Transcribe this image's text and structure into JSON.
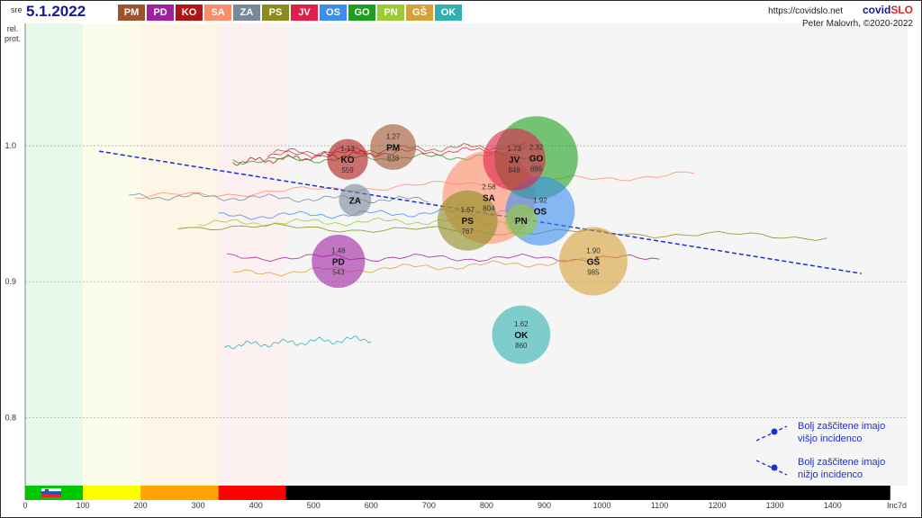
{
  "header": {
    "day": "sre",
    "date": "5.1.2022",
    "site": "https://covidslo.net",
    "brand_a": "covid",
    "brand_b": "SLO",
    "author": "Peter Malovrh, ©2020-2022"
  },
  "legend": [
    {
      "code": "PM",
      "color": "#a0522d"
    },
    {
      "code": "PD",
      "color": "#a020a0"
    },
    {
      "code": "KO",
      "color": "#b01515"
    },
    {
      "code": "SA",
      "color": "#ff8c69"
    },
    {
      "code": "ZA",
      "color": "#778899"
    },
    {
      "code": "PS",
      "color": "#8c8c1a"
    },
    {
      "code": "JV",
      "color": "#e21f4b"
    },
    {
      "code": "OS",
      "color": "#3a8ef0"
    },
    {
      "code": "GO",
      "color": "#1ea01e"
    },
    {
      "code": "PN",
      "color": "#9acd32"
    },
    {
      "code": "GŠ",
      "color": "#d8a038"
    },
    {
      "code": "OK",
      "color": "#30b0b0"
    }
  ],
  "colors": {
    "bands": [
      "#e8f8ea",
      "#fcfcea",
      "#fdf5e6",
      "#fdf0f0"
    ],
    "scale": [
      "#00c800",
      "#ffff00",
      "#ffa500",
      "#ff0000",
      "#000000"
    ],
    "plot_bg": "#f5f5f5",
    "trend": "#1a2ed6"
  },
  "chart_data": {
    "type": "scatter",
    "title": "5.1.2022",
    "xlabel": "Inc7d",
    "ylabel": "rel. prot.",
    "xlim": [
      0,
      1530
    ],
    "ylim": [
      0.75,
      1.09
    ],
    "x_ticks": [
      0,
      100,
      200,
      300,
      400,
      500,
      600,
      700,
      800,
      900,
      1000,
      1100,
      1200,
      1300,
      1400
    ],
    "y_ticks": [
      0.8,
      0.9,
      1.0
    ],
    "y_tick_labels": [
      "0.8",
      "0.9",
      "1.0"
    ],
    "band_edges": [
      0,
      100,
      200,
      335,
      452
    ],
    "scale_edges": [
      0,
      100,
      200,
      335,
      452,
      1500
    ],
    "trend_line": {
      "x": [
        128,
        1450
      ],
      "y": [
        0.996,
        0.906
      ]
    },
    "legend_notes": [
      {
        "line1": "Bolj  zaščitene imajo",
        "line2": "višjo incidenco"
      },
      {
        "line1": "Bolj  zaščitene imajo",
        "line2": "nižjo incidenco"
      }
    ],
    "points": [
      {
        "code": "PM",
        "x": 638,
        "y": 0.999,
        "r": 1.27,
        "label_x": "638",
        "label_r": "1.27"
      },
      {
        "code": "PD",
        "x": 543,
        "y": 0.915,
        "r": 1.48,
        "label_x": "543",
        "label_r": "1.48"
      },
      {
        "code": "KO",
        "x": 559,
        "y": 0.99,
        "r": 1.13,
        "label_x": "559",
        "label_r": "1.13"
      },
      {
        "code": "SA",
        "x": 804,
        "y": 0.962,
        "r": 2.58,
        "label_x": "804",
        "label_r": "2.58"
      },
      {
        "code": "ZA",
        "x": 572,
        "y": 0.96,
        "r": 0.9,
        "label_x": "",
        "label_r": ""
      },
      {
        "code": "PS",
        "x": 767,
        "y": 0.945,
        "r": 1.67,
        "label_x": "767",
        "label_r": "1.67"
      },
      {
        "code": "JV",
        "x": 848,
        "y": 0.99,
        "r": 1.73,
        "label_x": "848",
        "label_r": "1.73"
      },
      {
        "code": "OS",
        "x": 893,
        "y": 0.952,
        "r": 1.92,
        "label_x": "",
        "label_r": "1.92"
      },
      {
        "code": "GO",
        "x": 886,
        "y": 0.991,
        "r": 2.32,
        "label_x": "886",
        "label_r": "2.32"
      },
      {
        "code": "PN",
        "x": 860,
        "y": 0.945,
        "r": 0.9,
        "label_x": "",
        "label_r": ""
      },
      {
        "code": "GŠ",
        "x": 985,
        "y": 0.915,
        "r": 1.9,
        "label_x": "985",
        "label_r": "1.90"
      },
      {
        "code": "OK",
        "x": 860,
        "y": 0.861,
        "r": 1.62,
        "label_x": "860",
        "label_r": "1.62"
      }
    ],
    "trails": [
      {
        "code": "PM",
        "x1": 430,
        "x2": 870,
        "y1": 0.995,
        "y2": 1.0
      },
      {
        "code": "PD",
        "x1": 350,
        "x2": 1100,
        "y1": 0.918,
        "y2": 0.917
      },
      {
        "code": "KO",
        "x1": 360,
        "x2": 620,
        "y1": 0.988,
        "y2": 0.995
      },
      {
        "code": "SA",
        "x1": 190,
        "x2": 1160,
        "y1": 0.962,
        "y2": 0.979
      },
      {
        "code": "ZA",
        "x1": 180,
        "x2": 700,
        "y1": 0.963,
        "y2": 0.96
      },
      {
        "code": "PS",
        "x1": 265,
        "x2": 1390,
        "y1": 0.941,
        "y2": 0.933
      },
      {
        "code": "JV",
        "x1": 420,
        "x2": 870,
        "y1": 0.993,
        "y2": 0.997
      },
      {
        "code": "OS",
        "x1": 335,
        "x2": 900,
        "y1": 0.948,
        "y2": 0.952
      },
      {
        "code": "GO",
        "x1": 360,
        "x2": 890,
        "y1": 0.989,
        "y2": 0.993
      },
      {
        "code": "PN",
        "x1": 300,
        "x2": 870,
        "y1": 0.943,
        "y2": 0.945
      },
      {
        "code": "GŠ",
        "x1": 360,
        "x2": 990,
        "y1": 0.906,
        "y2": 0.915
      },
      {
        "code": "OK",
        "x1": 345,
        "x2": 600,
        "y1": 0.853,
        "y2": 0.858
      }
    ]
  }
}
